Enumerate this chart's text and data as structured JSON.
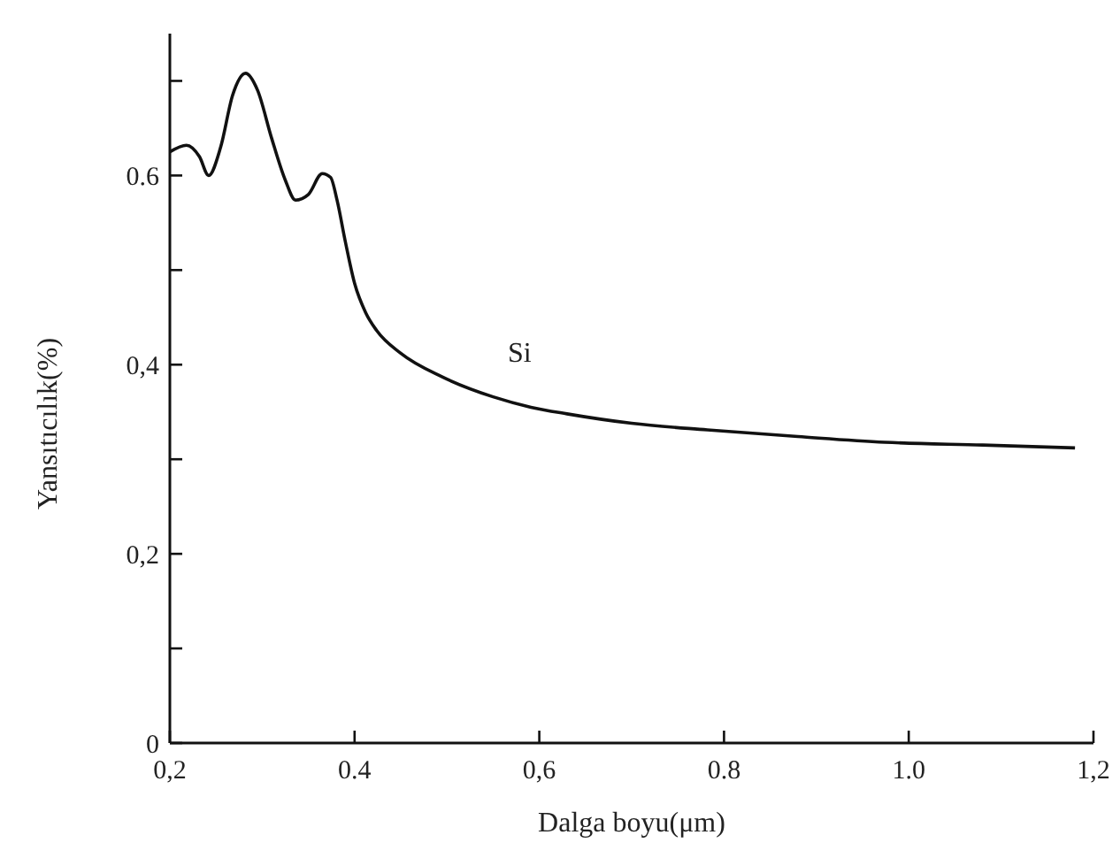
{
  "chart_data": {
    "type": "line",
    "xlabel": "Dalga boyu(μm)",
    "ylabel": "Yansıtıcılık(%)",
    "xlim": [
      0.2,
      1.2
    ],
    "ylim": [
      0,
      0.75
    ],
    "xticks": [
      {
        "value": 0.2,
        "label": "0,2"
      },
      {
        "value": 0.4,
        "label": "0.4"
      },
      {
        "value": 0.6,
        "label": "0,6"
      },
      {
        "value": 0.8,
        "label": "0.8"
      },
      {
        "value": 1.0,
        "label": "1.0"
      },
      {
        "value": 1.2,
        "label": "1,2"
      }
    ],
    "yticks": [
      0,
      {
        "value": 0.1,
        "label": null
      },
      {
        "value": 0.2,
        "label": "0,2"
      },
      {
        "value": 0.3,
        "label": null
      },
      {
        "value": 0.4,
        "label": "0,4"
      },
      {
        "value": 0.5,
        "label": null
      },
      {
        "value": 0.6,
        "label": "0.6"
      },
      {
        "value": 0.7,
        "label": null
      }
    ],
    "grid": false,
    "marker": "none",
    "line_style": "solid",
    "series": [
      {
        "name": "Si",
        "color": "#111111",
        "x": [
          0.2,
          0.218,
          0.232,
          0.242,
          0.255,
          0.268,
          0.282,
          0.295,
          0.31,
          0.325,
          0.336,
          0.35,
          0.365,
          0.374,
          0.381,
          0.39,
          0.4,
          0.412,
          0.424,
          0.45,
          0.495,
          0.55,
          0.591,
          0.63,
          0.7,
          0.782,
          0.88,
          0.974,
          1.08,
          1.18
        ],
        "values": [
          0.625,
          0.632,
          0.62,
          0.6,
          0.63,
          0.685,
          0.708,
          0.69,
          0.64,
          0.595,
          0.574,
          0.58,
          0.602,
          0.598,
          0.574,
          0.53,
          0.486,
          0.455,
          0.436,
          0.412,
          0.387,
          0.366,
          0.355,
          0.348,
          0.338,
          0.331,
          0.324,
          0.318,
          0.315,
          0.312
        ]
      }
    ]
  }
}
